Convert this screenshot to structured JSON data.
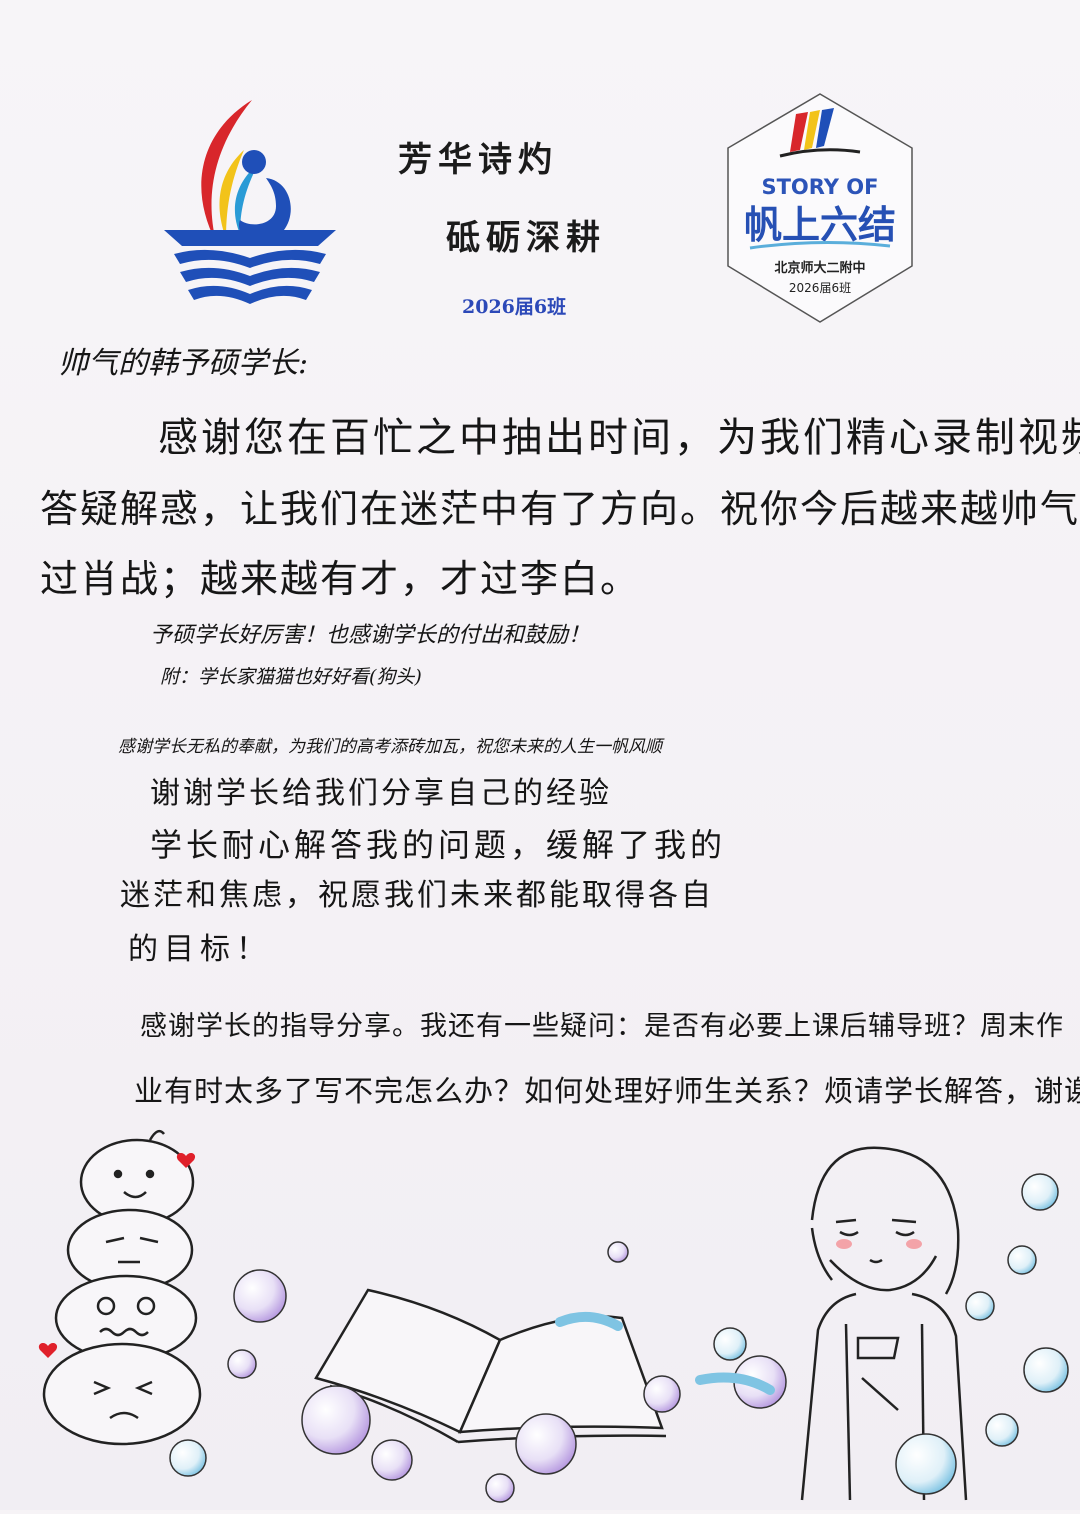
{
  "header": {
    "motto_line1": "芳华诗灼",
    "motto_line2": "砥砺深耕",
    "class_label": "2026届6班"
  },
  "badge": {
    "title_en": "STORY OF",
    "title_cn": "帆上六结",
    "school": "北京师大二附中",
    "class": "2026届6班"
  },
  "letter": {
    "greeting": "帅气的韩予硕学长:",
    "para1": [
      "感谢您在百忙之中抽出时间，为我们精心录制视频",
      "答疑解惑，让我们在迷茫中有了方向。祝你今后越来越帅气帅",
      "过肖战；越来越有才，才过李白。"
    ],
    "para2": "予硕学长好厉害！也感谢学长的付出和鼓励！",
    "para3": "附：学长家猫猫也好好看(狗头)",
    "para4": "感谢学长无私的奉献，为我们的高考添砖加瓦，祝您未来的人生一帆风顺",
    "para5": "谢谢学长给我们分享自己的经验",
    "para6": [
      "学长耐心解答我的问题，缓解了我的",
      "迷茫和焦虑，祝愿我们未来都能取得各自",
      "的目标！"
    ],
    "para7": [
      "感谢学长的指导分享。我还有一些疑问：是否有必要上课后辅导班？周末作",
      "业有时太多了写不完怎么办？如何处理好师生关系？烦请学长解答，谢谢！"
    ]
  },
  "colors": {
    "logo_red": "#d8262b",
    "logo_yellow": "#f2c31a",
    "logo_blue": "#1f4fb8",
    "badge_blue": "#2650b4",
    "bubble_blue": "#7fc4e3",
    "bubble_violet": "#b79ae0",
    "heart_red": "#e0202a"
  }
}
